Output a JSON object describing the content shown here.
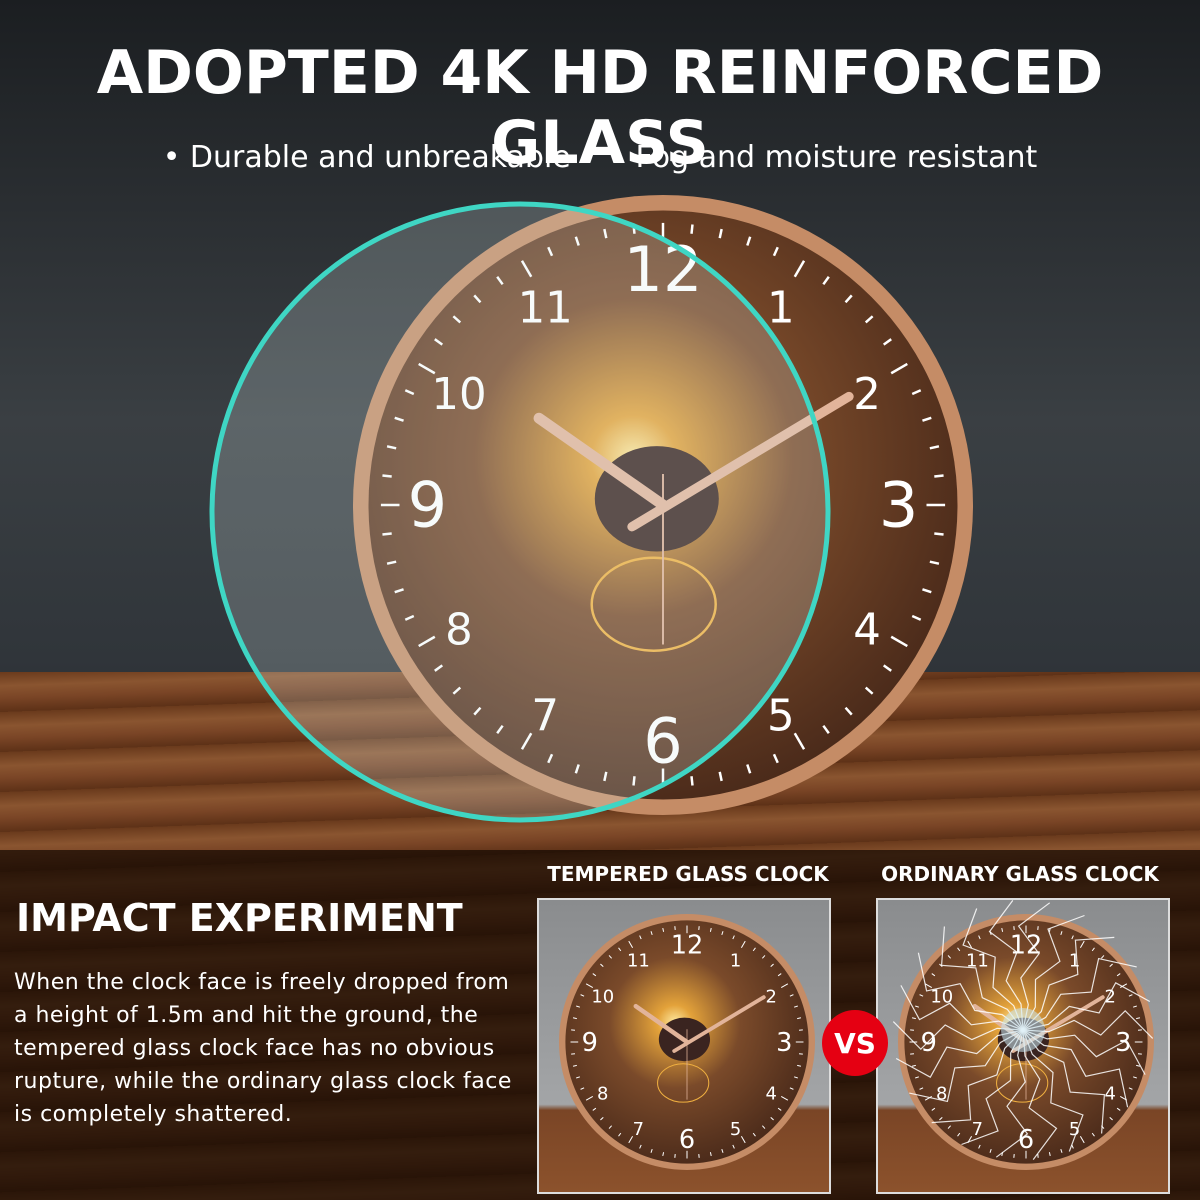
{
  "headline": "ADOPTED 4K HD REINFORCED GLASS",
  "bullets": [
    "• Durable and unbreakable",
    "• Fog and moisture resistant"
  ],
  "clock_numerals": [
    "12",
    "1",
    "2",
    "3",
    "4",
    "5",
    "6",
    "7",
    "8",
    "9",
    "10",
    "11"
  ],
  "impact": {
    "title": "IMPACT EXPERIMENT",
    "text": "When the clock face is freely dropped from a height of 1.5m and hit the ground, the tempered glass clock face has no obvious rupture, while the ordinary glass clock face is completely shattered."
  },
  "comparison": {
    "left_label": "TEMPERED GLASS CLOCK",
    "right_label": "ORDINARY GLASS CLOCK",
    "vs_label": "VS"
  },
  "colors": {
    "vs_badge": "#e50012",
    "rim": "#d9a27a",
    "glass_edge": "#3fd6c4"
  }
}
